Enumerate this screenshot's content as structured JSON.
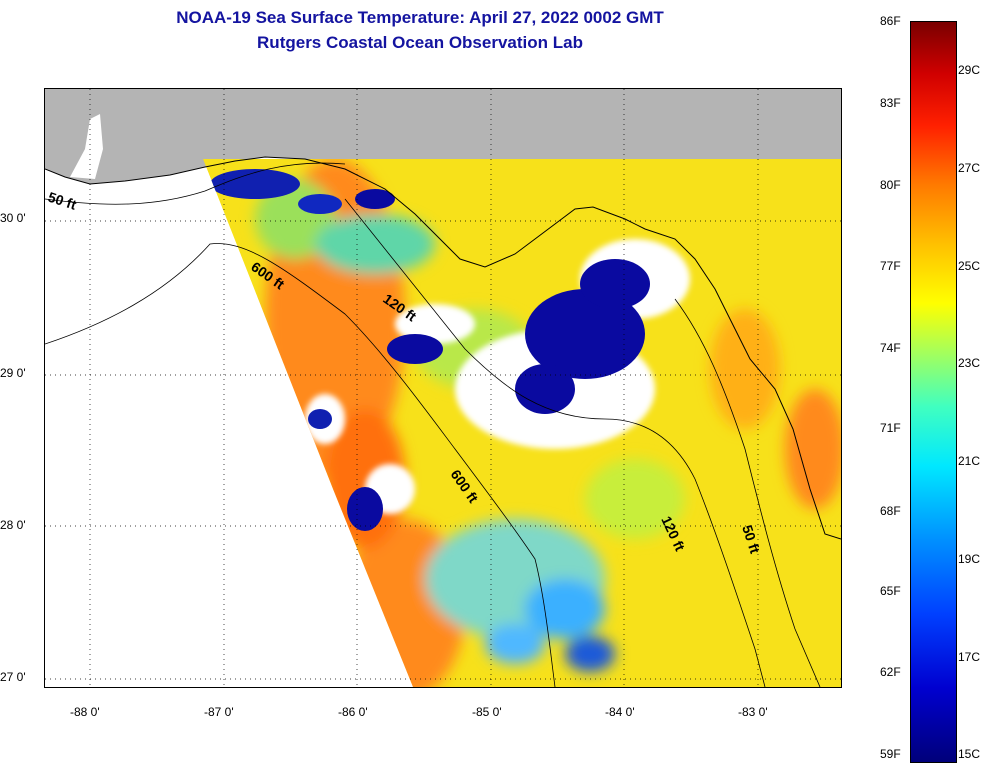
{
  "title": {
    "line1": "NOAA-19 Sea Surface Temperature:  April 27, 2022 0002 GMT",
    "line2": "Rutgers Coastal Ocean Observation Lab"
  },
  "axes": {
    "latitude_labels": [
      "30 0'",
      "29 0'",
      "28 0'",
      "27 0'"
    ],
    "longitude_labels": [
      "-88 0'",
      "-87 0'",
      "-86 0'",
      "-85 0'",
      "-84 0'",
      "-83 0'"
    ]
  },
  "contour_labels": [
    "50 ft",
    "600 ft",
    "120 ft",
    "600 ft",
    "120 ft",
    "50 ft"
  ],
  "colorbar": {
    "fahrenheit_labels": [
      "86F",
      "83F",
      "80F",
      "77F",
      "74F",
      "71F",
      "68F",
      "65F",
      "62F",
      "59F"
    ],
    "celsius_labels": [
      "29C",
      "27C",
      "25C",
      "23C",
      "21C",
      "19C",
      "17C",
      "15C"
    ]
  },
  "colors": {
    "title": "#1414a0",
    "land": "#b4b4b4",
    "cloud": "#ffffff",
    "outside_swath": "#ffffff",
    "warm": "#ff8c1a",
    "mid": "#ffe000",
    "cool": "#20c8ff",
    "cold": "#0a0aa0"
  }
}
